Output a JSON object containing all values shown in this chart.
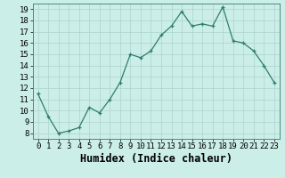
{
  "x": [
    0,
    1,
    2,
    3,
    4,
    5,
    6,
    7,
    8,
    9,
    10,
    11,
    12,
    13,
    14,
    15,
    16,
    17,
    18,
    19,
    20,
    21,
    22,
    23
  ],
  "y": [
    11.5,
    9.5,
    8.0,
    8.2,
    8.5,
    10.3,
    9.8,
    11.0,
    12.5,
    15.0,
    14.7,
    15.3,
    16.7,
    17.5,
    18.8,
    17.5,
    17.7,
    17.5,
    19.2,
    16.2,
    16.0,
    15.3,
    14.0,
    12.5
  ],
  "xlabel": "Humidex (Indice chaleur)",
  "line_color": "#2e7d6e",
  "marker": "+",
  "marker_color": "#2e7d6e",
  "bg_color": "#cceee8",
  "grid_color": "#aad4cc",
  "xlim": [
    -0.5,
    23.5
  ],
  "ylim": [
    7.5,
    19.5
  ],
  "yticks": [
    8,
    9,
    10,
    11,
    12,
    13,
    14,
    15,
    16,
    17,
    18,
    19
  ],
  "xticks": [
    0,
    1,
    2,
    3,
    4,
    5,
    6,
    7,
    8,
    9,
    10,
    11,
    12,
    13,
    14,
    15,
    16,
    17,
    18,
    19,
    20,
    21,
    22,
    23
  ],
  "tick_fontsize": 6.5,
  "xlabel_fontsize": 8.5
}
